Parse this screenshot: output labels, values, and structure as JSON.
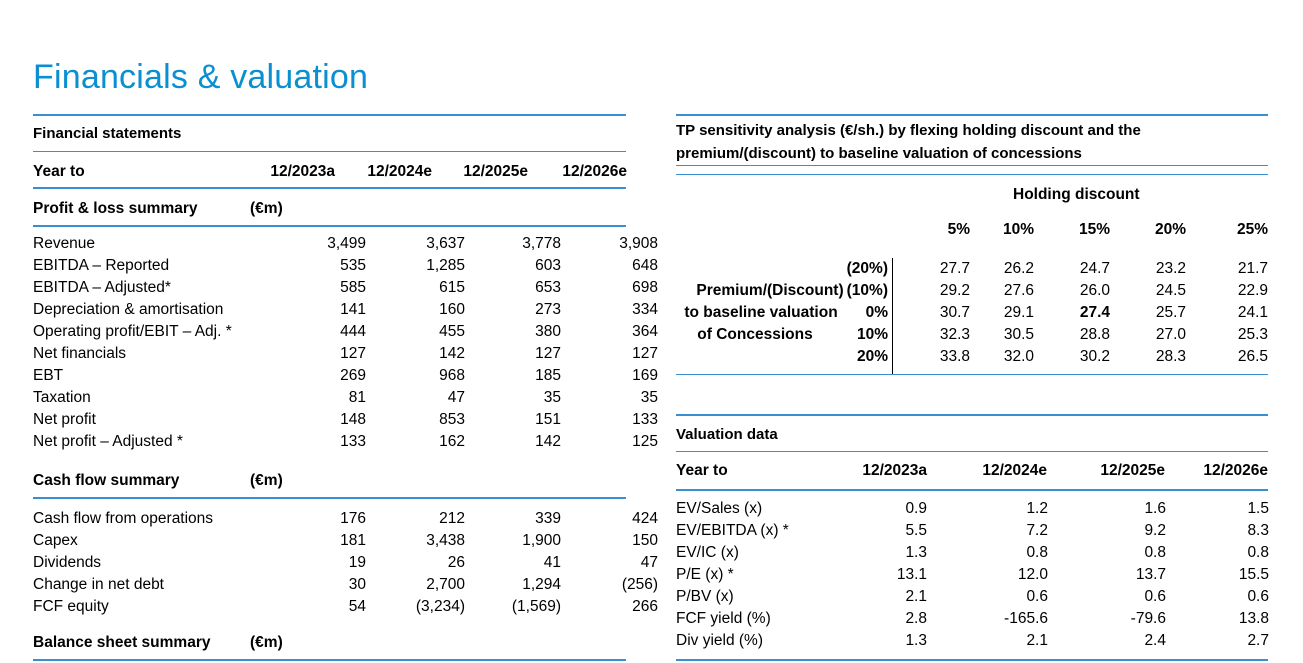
{
  "page_title": "Financials & valuation",
  "colors": {
    "accent": "#0a8fd1",
    "rule": "#3a8fd0"
  },
  "financial_statements": {
    "heading": "Financial statements",
    "year_to_label": "Year to",
    "years": [
      "12/2023a",
      "12/2024e",
      "12/2025e",
      "12/2026e"
    ],
    "pl": {
      "heading": "Profit & loss summary",
      "unit": "(€m)",
      "rows": [
        {
          "label": "Revenue",
          "values": [
            "3,499",
            "3,637",
            "3,778",
            "3,908"
          ]
        },
        {
          "label": "EBITDA – Reported",
          "values": [
            "535",
            "1,285",
            "603",
            "648"
          ]
        },
        {
          "label": "EBITDA – Adjusted*",
          "values": [
            "585",
            "615",
            "653",
            "698"
          ]
        },
        {
          "label": "Depreciation & amortisation",
          "values": [
            "141",
            "160",
            "273",
            "334"
          ]
        },
        {
          "label": "Operating profit/EBIT – Adj. *",
          "values": [
            "444",
            "455",
            "380",
            "364"
          ]
        },
        {
          "label": "Net financials",
          "values": [
            "127",
            "142",
            "127",
            "127"
          ]
        },
        {
          "label": "EBT",
          "values": [
            "269",
            "968",
            "185",
            "169"
          ]
        },
        {
          "label": "Taxation",
          "values": [
            "81",
            "47",
            "35",
            "35"
          ]
        },
        {
          "label": "Net profit",
          "values": [
            "148",
            "853",
            "151",
            "133"
          ]
        },
        {
          "label": "Net profit – Adjusted *",
          "values": [
            "133",
            "162",
            "142",
            "125"
          ]
        }
      ]
    },
    "cf": {
      "heading": "Cash flow summary",
      "unit": "(€m)",
      "rows": [
        {
          "label": "Cash flow from operations",
          "values": [
            "176",
            "212",
            "339",
            "424"
          ]
        },
        {
          "label": "Capex",
          "values": [
            "181",
            "3,438",
            "1,900",
            "150"
          ]
        },
        {
          "label": "Dividends",
          "values": [
            "19",
            "26",
            "41",
            "47"
          ]
        },
        {
          "label": "Change in net debt",
          "values": [
            "30",
            "2,700",
            "1,294",
            "(256)"
          ]
        },
        {
          "label": "FCF equity",
          "values": [
            "54",
            "(3,234)",
            "(1,569)",
            "266"
          ]
        }
      ]
    },
    "bs": {
      "heading": "Balance sheet summary",
      "unit": "(€m)"
    }
  },
  "sensitivity": {
    "heading_line1": "TP sensitivity analysis (€/sh.) by flexing holding discount and the",
    "heading_line2": "premium/(discount) to baseline valuation of concessions",
    "col_group_label": "Holding discount",
    "col_headers": [
      "5%",
      "10%",
      "15%",
      "20%",
      "25%"
    ],
    "row_group_label": [
      "Premium/(Discount)",
      "to baseline valuation",
      "of Concessions"
    ],
    "row_headers": [
      "(20%)",
      "(10%)",
      "0%",
      "10%",
      "20%"
    ],
    "values": [
      [
        "27.7",
        "26.2",
        "24.7",
        "23.2",
        "21.7"
      ],
      [
        "29.2",
        "27.6",
        "26.0",
        "24.5",
        "22.9"
      ],
      [
        "30.7",
        "29.1",
        "27.4",
        "25.7",
        "24.1"
      ],
      [
        "32.3",
        "30.5",
        "28.8",
        "27.0",
        "25.3"
      ],
      [
        "33.8",
        "32.0",
        "30.2",
        "28.3",
        "26.5"
      ]
    ]
  },
  "valuation": {
    "heading": "Valuation data",
    "year_to_label": "Year to",
    "years": [
      "12/2023a",
      "12/2024e",
      "12/2025e",
      "12/2026e"
    ],
    "rows": [
      {
        "label": "EV/Sales (x)",
        "values": [
          "0.9",
          "1.2",
          "1.6",
          "1.5"
        ]
      },
      {
        "label": "EV/EBITDA (x) *",
        "values": [
          "5.5",
          "7.2",
          "9.2",
          "8.3"
        ]
      },
      {
        "label": "EV/IC (x)",
        "values": [
          "1.3",
          "0.8",
          "0.8",
          "0.8"
        ]
      },
      {
        "label": "P/E (x) *",
        "values": [
          "13.1",
          "12.0",
          "13.7",
          "15.5"
        ]
      },
      {
        "label": "P/BV (x)",
        "values": [
          "2.1",
          "0.6",
          "0.6",
          "0.6"
        ]
      },
      {
        "label": "FCF yield (%)",
        "values": [
          "2.8",
          "-165.6",
          "-79.6",
          "13.8"
        ]
      },
      {
        "label": "Div yield (%)",
        "values": [
          "1.3",
          "2.1",
          "2.4",
          "2.7"
        ]
      }
    ]
  }
}
